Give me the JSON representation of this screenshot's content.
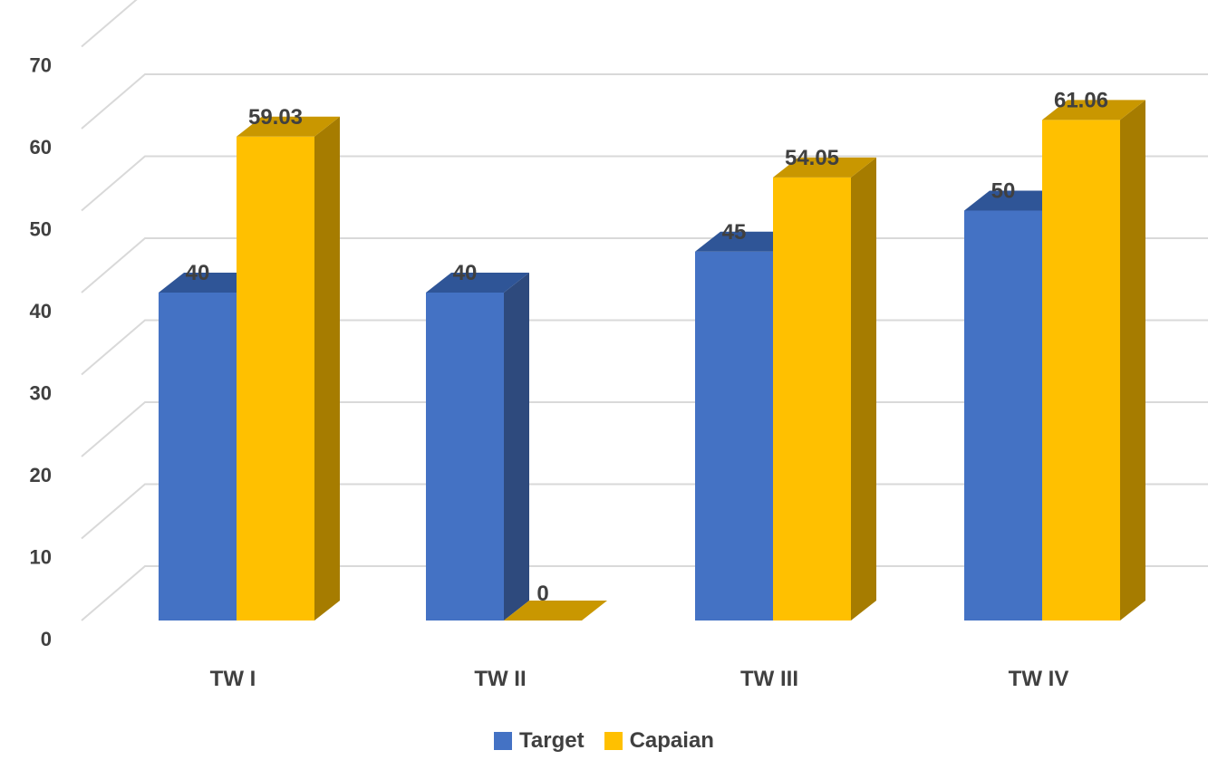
{
  "chart_data": {
    "type": "bar",
    "categories": [
      "TW I",
      "TW II",
      "TW III",
      "TW IV"
    ],
    "series": [
      {
        "name": "Target",
        "values": [
          40,
          40,
          45,
          50
        ],
        "labels": [
          "40",
          "40",
          "45",
          "50"
        ],
        "color": "#4472C4",
        "side_color": "#2E4A7D",
        "top_color": "#2F5597"
      },
      {
        "name": "Capaian",
        "values": [
          59.03,
          0,
          54.05,
          61.06
        ],
        "labels": [
          "59.03",
          "0",
          "54.05",
          "61.06"
        ],
        "color": "#FFC000",
        "side_color": "#A67C00",
        "top_color": "#C99700"
      }
    ],
    "yticks": [
      "0",
      "10",
      "20",
      "30",
      "40",
      "50",
      "60",
      "70"
    ],
    "ylim": [
      0,
      70
    ],
    "grid": true,
    "legend": "bottom"
  }
}
